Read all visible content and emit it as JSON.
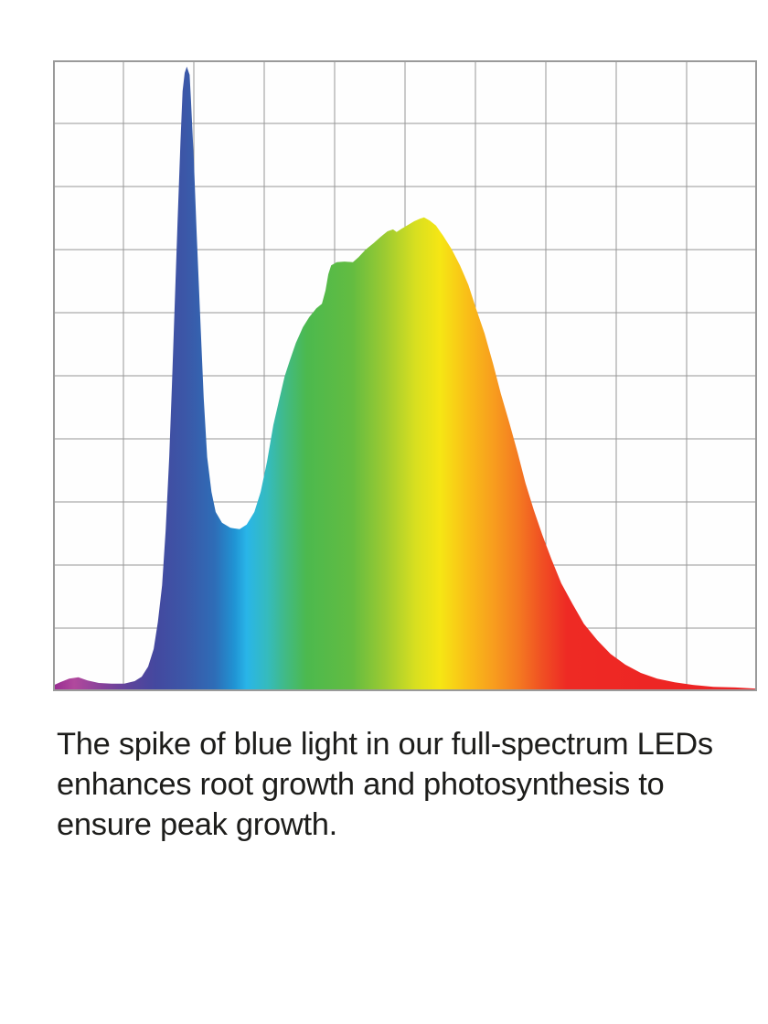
{
  "caption": {
    "color": "#1d1d1b",
    "lines": [
      "The spike of blue light in our full-spectrum LEDs",
      "enhances root growth and photosynthesis to",
      "ensure peak growth."
    ],
    "full_text": "The spike of blue light in our full-spectrum LEDs enhances root growth and photosynthesis to ensure peak growth."
  },
  "chart_data": {
    "type": "area",
    "title": "",
    "xlabel": "",
    "ylabel": "",
    "description": "Full-spectrum LED spectral power distribution: sharp blue spike, cyan dip, broad green-to-red hump peaking in yellow, long red decay tail. No axis tick labels are shown.",
    "grid": {
      "columns": 10,
      "rows": 10,
      "line_color": "#979797",
      "border_color": "#9a9a9a",
      "background": "#fefefe"
    },
    "features": {
      "blue_spike": {
        "x": 0.19,
        "intensity": 0.99
      },
      "cyan_dip": {
        "x": 0.265,
        "intensity": 0.257
      },
      "broad_peak": {
        "x": 0.527,
        "intensity": 0.751
      },
      "tail_end": {
        "x": 1.0,
        "intensity": 0.004
      }
    },
    "gradient_stops": [
      {
        "offset": 0.0,
        "color": "#962a91"
      },
      {
        "offset": 0.03,
        "color": "#b1499d"
      },
      {
        "offset": 0.07,
        "color": "#86419a"
      },
      {
        "offset": 0.105,
        "color": "#5f439b"
      },
      {
        "offset": 0.145,
        "color": "#44489f"
      },
      {
        "offset": 0.19,
        "color": "#3b58a8"
      },
      {
        "offset": 0.23,
        "color": "#2e6db7"
      },
      {
        "offset": 0.258,
        "color": "#2094d4"
      },
      {
        "offset": 0.275,
        "color": "#29b5e8"
      },
      {
        "offset": 0.305,
        "color": "#35bbbd"
      },
      {
        "offset": 0.33,
        "color": "#41ba85"
      },
      {
        "offset": 0.36,
        "color": "#4cb94e"
      },
      {
        "offset": 0.425,
        "color": "#63bc41"
      },
      {
        "offset": 0.47,
        "color": "#9aca32"
      },
      {
        "offset": 0.515,
        "color": "#d8df20"
      },
      {
        "offset": 0.55,
        "color": "#f6e614"
      },
      {
        "offset": 0.59,
        "color": "#f9bd18"
      },
      {
        "offset": 0.625,
        "color": "#f89e1e"
      },
      {
        "offset": 0.66,
        "color": "#f47b21"
      },
      {
        "offset": 0.695,
        "color": "#f04f23"
      },
      {
        "offset": 0.73,
        "color": "#ee2a24"
      },
      {
        "offset": 1.0,
        "color": "#ec2124"
      }
    ],
    "points": [
      [
        0.0,
        0.009
      ],
      [
        0.01,
        0.014
      ],
      [
        0.023,
        0.02
      ],
      [
        0.036,
        0.022
      ],
      [
        0.049,
        0.017
      ],
      [
        0.065,
        0.013
      ],
      [
        0.083,
        0.012
      ],
      [
        0.101,
        0.012
      ],
      [
        0.116,
        0.016
      ],
      [
        0.126,
        0.023
      ],
      [
        0.135,
        0.039
      ],
      [
        0.143,
        0.067
      ],
      [
        0.149,
        0.11
      ],
      [
        0.155,
        0.168
      ],
      [
        0.16,
        0.255
      ],
      [
        0.165,
        0.371
      ],
      [
        0.169,
        0.487
      ],
      [
        0.173,
        0.617
      ],
      [
        0.177,
        0.748
      ],
      [
        0.181,
        0.871
      ],
      [
        0.184,
        0.951
      ],
      [
        0.187,
        0.98
      ],
      [
        0.19,
        0.99
      ],
      [
        0.194,
        0.977
      ],
      [
        0.196,
        0.936
      ],
      [
        0.2,
        0.842
      ],
      [
        0.204,
        0.726
      ],
      [
        0.209,
        0.596
      ],
      [
        0.214,
        0.465
      ],
      [
        0.219,
        0.371
      ],
      [
        0.225,
        0.316
      ],
      [
        0.231,
        0.284
      ],
      [
        0.24,
        0.267
      ],
      [
        0.252,
        0.259
      ],
      [
        0.265,
        0.257
      ],
      [
        0.275,
        0.264
      ],
      [
        0.286,
        0.284
      ],
      [
        0.295,
        0.316
      ],
      [
        0.304,
        0.364
      ],
      [
        0.313,
        0.422
      ],
      [
        0.321,
        0.461
      ],
      [
        0.329,
        0.499
      ],
      [
        0.336,
        0.523
      ],
      [
        0.345,
        0.552
      ],
      [
        0.355,
        0.577
      ],
      [
        0.364,
        0.593
      ],
      [
        0.374,
        0.607
      ],
      [
        0.382,
        0.614
      ],
      [
        0.387,
        0.635
      ],
      [
        0.391,
        0.661
      ],
      [
        0.395,
        0.675
      ],
      [
        0.403,
        0.68
      ],
      [
        0.414,
        0.681
      ],
      [
        0.426,
        0.68
      ],
      [
        0.434,
        0.688
      ],
      [
        0.444,
        0.7
      ],
      [
        0.455,
        0.71
      ],
      [
        0.465,
        0.72
      ],
      [
        0.475,
        0.729
      ],
      [
        0.483,
        0.732
      ],
      [
        0.488,
        0.728
      ],
      [
        0.495,
        0.733
      ],
      [
        0.504,
        0.739
      ],
      [
        0.513,
        0.745
      ],
      [
        0.521,
        0.749
      ],
      [
        0.527,
        0.751
      ],
      [
        0.535,
        0.746
      ],
      [
        0.544,
        0.738
      ],
      [
        0.554,
        0.722
      ],
      [
        0.566,
        0.701
      ],
      [
        0.578,
        0.675
      ],
      [
        0.59,
        0.644
      ],
      [
        0.601,
        0.606
      ],
      [
        0.613,
        0.567
      ],
      [
        0.625,
        0.519
      ],
      [
        0.636,
        0.472
      ],
      [
        0.648,
        0.426
      ],
      [
        0.66,
        0.378
      ],
      [
        0.671,
        0.33
      ],
      [
        0.683,
        0.287
      ],
      [
        0.695,
        0.248
      ],
      [
        0.708,
        0.209
      ],
      [
        0.722,
        0.171
      ],
      [
        0.738,
        0.138
      ],
      [
        0.754,
        0.107
      ],
      [
        0.773,
        0.081
      ],
      [
        0.792,
        0.059
      ],
      [
        0.813,
        0.042
      ],
      [
        0.835,
        0.029
      ],
      [
        0.858,
        0.02
      ],
      [
        0.883,
        0.014
      ],
      [
        0.909,
        0.01
      ],
      [
        0.938,
        0.007
      ],
      [
        0.969,
        0.006
      ],
      [
        1.0,
        0.004
      ]
    ]
  }
}
